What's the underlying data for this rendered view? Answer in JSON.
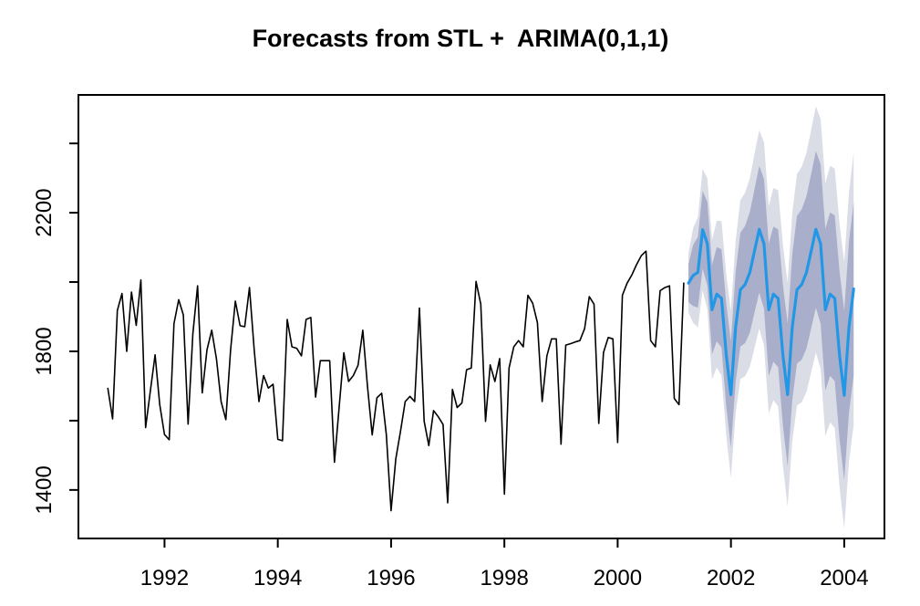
{
  "title": "Forecasts from STL +  ARIMA(0,1,1)",
  "chart_data": {
    "type": "line",
    "title": "Forecasts from STL +  ARIMA(0,1,1)",
    "grid": false,
    "legend": null,
    "x_axis": {
      "range": [
        1990.48,
        2004.71
      ],
      "ticks": [
        1992,
        1994,
        1996,
        1998,
        2000,
        2002,
        2004
      ]
    },
    "y_axis": {
      "range": [
        1260,
        2540
      ],
      "ticks": [
        1400,
        1600,
        1800,
        2000,
        2200,
        2400
      ],
      "labeled_ticks": [
        1400,
        1800,
        2200
      ]
    },
    "colors": {
      "observed": "#000000",
      "forecast_mean": "#2297E6",
      "band_80": "#A9AFCB",
      "band_95": "#DADCE6"
    },
    "series": [
      {
        "name": "observed",
        "color": "#000000",
        "start": 1991.0,
        "step": 0.0833333,
        "values": [
          1693,
          1605,
          1918,
          1967,
          1800,
          1971,
          1875,
          2006,
          1580,
          1686,
          1790,
          1646,
          1560,
          1545,
          1880,
          1949,
          1905,
          1590,
          1850,
          1989,
          1680,
          1804,
          1861,
          1778,
          1655,
          1603,
          1804,
          1945,
          1874,
          1871,
          1984,
          1804,
          1655,
          1730,
          1694,
          1705,
          1546,
          1542,
          1892,
          1813,
          1809,
          1787,
          1892,
          1898,
          1668,
          1773,
          1773,
          1773,
          1480,
          1640,
          1796,
          1713,
          1730,
          1760,
          1861,
          1700,
          1559,
          1666,
          1679,
          1560,
          1340,
          1490,
          1570,
          1655,
          1670,
          1655,
          1925,
          1598,
          1528,
          1629,
          1611,
          1589,
          1363,
          1690,
          1638,
          1651,
          1747,
          1752,
          2002,
          1936,
          1598,
          1761,
          1713,
          1779,
          1388,
          1752,
          1813,
          1831,
          1813,
          1962,
          1939,
          1883,
          1655,
          1787,
          1836,
          1836,
          1532,
          1818,
          1822,
          1827,
          1831,
          1866,
          1958,
          1936,
          1592,
          1797,
          1840,
          1836,
          1537,
          1962,
          1997,
          2020,
          2050,
          2076,
          2089,
          1831,
          1813,
          1975,
          1984,
          1989,
          1664,
          1646,
          1997
        ]
      },
      {
        "name": "forecast-mean",
        "color": "#2297E6",
        "start": 2001.25,
        "step": 0.0833333,
        "values": [
          1997,
          2019,
          2028,
          2151,
          2110,
          1920,
          1965,
          1953,
          1790,
          1675,
          1870,
          1978,
          1993,
          2028,
          2090,
          2152,
          2110,
          1920,
          1965,
          1953,
          1790,
          1675,
          1870,
          1978,
          1993,
          2028,
          2090,
          2152,
          2110,
          1920,
          1965,
          1953,
          1790,
          1673,
          1870,
          1980
        ]
      }
    ],
    "bands": [
      {
        "name": "interval-95",
        "level": "95%",
        "color": "#DADCE6",
        "start": 2001.25,
        "step": 0.0833333,
        "lo": [
          1912,
          1882,
          1869,
          1976,
          1921,
          1719,
          1753,
          1730,
          1558,
          1434,
          1621,
          1720,
          1728,
          1756,
          1810,
          1866,
          1817,
          1621,
          1659,
          1641,
          1472,
          1352,
          1541,
          1644,
          1653,
          1683,
          1740,
          1797,
          1750,
          1555,
          1595,
          1579,
          1411,
          1289,
          1482,
          1587
        ],
        "hi": [
          2082,
          2156,
          2187,
          2326,
          2299,
          2121,
          2177,
          2176,
          2022,
          1916,
          2119,
          2236,
          2258,
          2300,
          2370,
          2438,
          2403,
          2219,
          2271,
          2265,
          2108,
          1998,
          2199,
          2312,
          2333,
          2373,
          2440,
          2507,
          2470,
          2285,
          2335,
          2327,
          2169,
          2057,
          2258,
          2373
        ]
      },
      {
        "name": "interval-80",
        "level": "80%",
        "color": "#A9AFCB",
        "start": 2001.25,
        "step": 0.0833333,
        "lo": [
          1942,
          1931,
          1926,
          2039,
          1989,
          1791,
          1829,
          1811,
          1642,
          1521,
          1711,
          1814,
          1824,
          1854,
          1912,
          1969,
          1923,
          1729,
          1770,
          1754,
          1587,
          1469,
          1660,
          1765,
          1776,
          1808,
          1867,
          1926,
          1880,
          1687,
          1729,
          1714,
          1548,
          1428,
          1623,
          1730
        ],
        "hi": [
          2052,
          2107,
          2130,
          2263,
          2231,
          2049,
          2101,
          2095,
          1938,
          1829,
          2029,
          2142,
          2162,
          2202,
          2268,
          2335,
          2297,
          2111,
          2160,
          2152,
          1993,
          1881,
          2080,
          2191,
          2210,
          2248,
          2313,
          2378,
          2340,
          2153,
          2201,
          2192,
          2032,
          1918,
          2117,
          2230
        ]
      }
    ]
  }
}
